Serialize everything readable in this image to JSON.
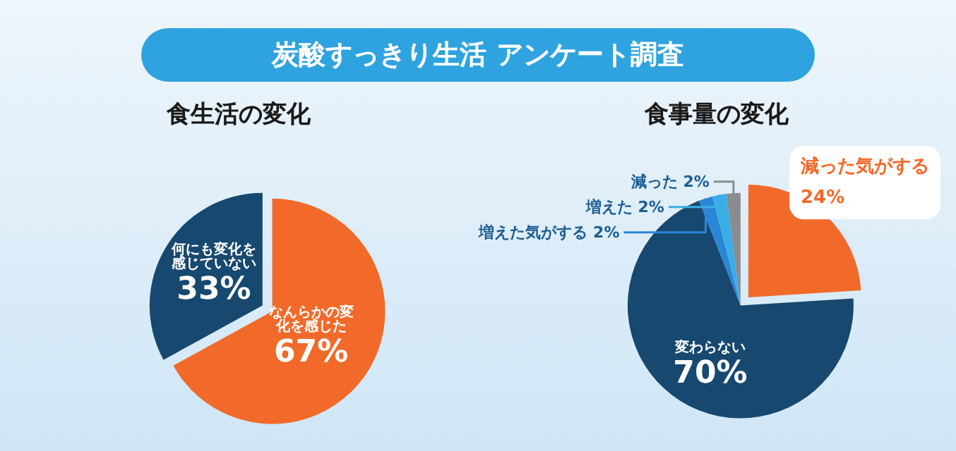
{
  "chart_data": [
    {
      "type": "pie",
      "title": "食生活の変化",
      "annotations": [
        "炭酸すっきり生活 アンケート調査"
      ],
      "categories": [
        "なんらかの変化を感じた",
        "何にも変化を感じていない"
      ],
      "values": [
        67,
        33
      ],
      "value_labels": [
        "67%",
        "33%"
      ],
      "colors": [
        "#f26a2a",
        "#17486f"
      ]
    },
    {
      "type": "pie",
      "title": "食事量の変化",
      "categories": [
        "減った気がする",
        "変わらない",
        "増えた気がする",
        "増えた",
        "減った"
      ],
      "values": [
        24,
        70,
        2,
        2,
        2
      ],
      "value_labels": [
        "24%",
        "70%",
        "2%",
        "2%",
        "2%"
      ],
      "colors": [
        "#f26a2a",
        "#17486f",
        "#2a86d6",
        "#3aaee6",
        "#8a8c8e"
      ]
    }
  ]
}
